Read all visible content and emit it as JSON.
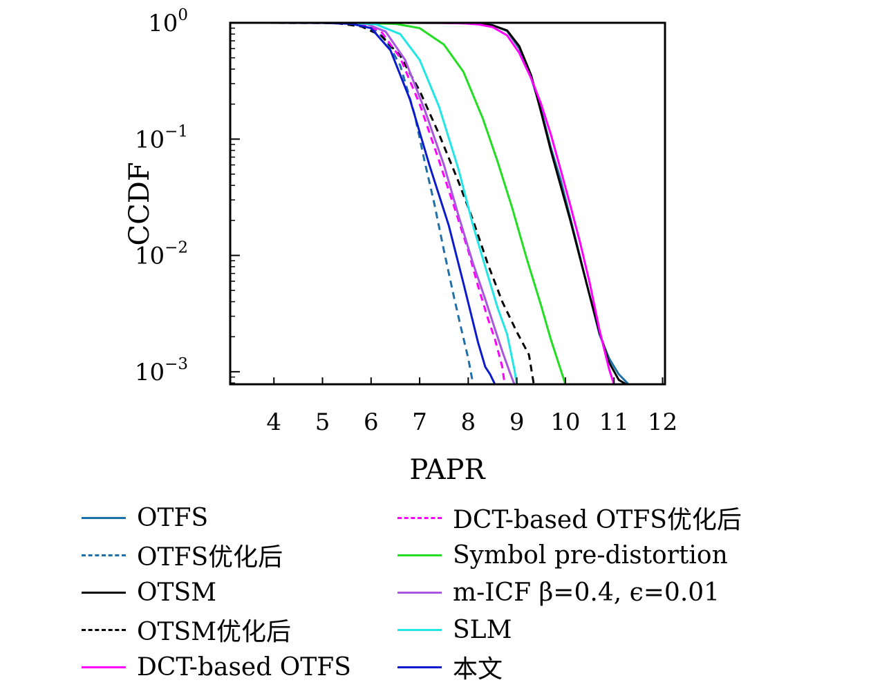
{
  "chart_data": {
    "type": "line",
    "title": "",
    "xlabel": "PAPR",
    "ylabel": "CCDF",
    "xscale": "linear",
    "yscale": "log",
    "xlim": [
      3.1,
      12.05
    ],
    "ylim": [
      0.00078,
      1
    ],
    "xticks": [
      4,
      5,
      6,
      7,
      8,
      9,
      10,
      11,
      12
    ],
    "xtick_labels": [
      "4",
      "5",
      "6",
      "7",
      "8",
      "9",
      "10",
      "11",
      "12"
    ],
    "yticks": [
      1,
      0.1,
      0.01,
      0.001
    ],
    "ytick_labels": [
      {
        "base": "10",
        "exp": "0"
      },
      {
        "base": "10",
        "exp": "−1"
      },
      {
        "base": "10",
        "exp": "−2"
      },
      {
        "base": "10",
        "exp": "−3"
      }
    ],
    "legend_position": "below",
    "series": [
      {
        "name": "OTFS",
        "color": "#1f6fa8",
        "dash": "solid",
        "x": [
          3.1,
          6.5,
          7.5,
          7.9,
          8.2,
          8.5,
          8.8,
          9.05,
          9.3,
          9.5,
          9.7,
          9.9,
          10.1,
          10.3,
          10.5,
          10.7,
          10.9,
          11.1,
          11.3
        ],
        "y": [
          1.0,
          1.0,
          0.999,
          0.995,
          0.985,
          0.955,
          0.85,
          0.6,
          0.33,
          0.18,
          0.085,
          0.045,
          0.021,
          0.0098,
          0.0045,
          0.0021,
          0.0013,
          0.00095,
          0.00078
        ]
      },
      {
        "name": "OTFS优化后",
        "color": "#1f6fa8",
        "dash": "dashed",
        "x": [
          3.1,
          4.8,
          5.5,
          6.0,
          6.3,
          6.6,
          6.9,
          7.1,
          7.3,
          7.5,
          7.7,
          7.85,
          8.0,
          8.1
        ],
        "y": [
          1.0,
          0.999,
          0.99,
          0.92,
          0.72,
          0.43,
          0.16,
          0.065,
          0.028,
          0.011,
          0.0045,
          0.0024,
          0.0013,
          0.00078
        ]
      },
      {
        "name": "OTSM",
        "color": "#000000",
        "dash": "solid",
        "x": [
          3.1,
          6.5,
          7.5,
          7.95,
          8.2,
          8.5,
          8.8,
          9.05,
          9.3,
          9.5,
          9.7,
          9.9,
          10.1,
          10.3,
          10.5,
          10.7,
          10.9,
          11.1,
          11.25
        ],
        "y": [
          1.0,
          1.0,
          0.999,
          0.99,
          0.98,
          0.95,
          0.86,
          0.63,
          0.35,
          0.17,
          0.08,
          0.04,
          0.02,
          0.0095,
          0.0045,
          0.0022,
          0.0012,
          0.00085,
          0.00078
        ]
      },
      {
        "name": "OTSM优化后",
        "color": "#000000",
        "dash": "dashed",
        "x": [
          3.1,
          4.8,
          5.3,
          5.8,
          6.2,
          6.6,
          7.0,
          7.4,
          7.8,
          8.1,
          8.4,
          8.7,
          9.0,
          9.25,
          9.35
        ],
        "y": [
          1.0,
          0.999,
          0.99,
          0.93,
          0.78,
          0.52,
          0.26,
          0.11,
          0.043,
          0.02,
          0.0085,
          0.004,
          0.0022,
          0.0014,
          0.00078
        ]
      },
      {
        "name": "DCT-based OTFS",
        "color": "#ff00ff",
        "dash": "solid",
        "x": [
          3.1,
          6.5,
          7.4,
          7.9,
          8.2,
          8.5,
          8.8,
          9.05,
          9.3,
          9.5,
          9.7,
          9.9,
          10.1,
          10.3,
          10.5,
          10.7,
          10.9,
          11.0
        ],
        "y": [
          1.0,
          1.0,
          0.999,
          0.99,
          0.97,
          0.92,
          0.78,
          0.55,
          0.33,
          0.2,
          0.11,
          0.055,
          0.027,
          0.013,
          0.0058,
          0.0023,
          0.00105,
          0.00078
        ]
      },
      {
        "name": "DCT-based OTFS优化后",
        "color": "#ff00ff",
        "dash": "dashed",
        "x": [
          3.1,
          5.3,
          5.8,
          6.2,
          6.6,
          7.0,
          7.4,
          7.7,
          8.0,
          8.2,
          8.4,
          8.55,
          8.7,
          8.75
        ],
        "y": [
          1.0,
          0.999,
          0.98,
          0.85,
          0.5,
          0.2,
          0.065,
          0.027,
          0.011,
          0.0055,
          0.0029,
          0.0019,
          0.0011,
          0.00078
        ]
      },
      {
        "name": "Symbol pre-distortion",
        "color": "#22dd22",
        "dash": "solid",
        "x": [
          3.1,
          5.5,
          6.5,
          7.0,
          7.5,
          7.9,
          8.3,
          8.6,
          8.9,
          9.2,
          9.5,
          9.7,
          9.9,
          10.0
        ],
        "y": [
          1.0,
          1.0,
          0.98,
          0.9,
          0.65,
          0.38,
          0.15,
          0.065,
          0.026,
          0.0095,
          0.0037,
          0.0019,
          0.00105,
          0.00078
        ]
      },
      {
        "name": "m-ICF β=0.4, ϵ=0.01",
        "color": "#aa55e0",
        "dash": "solid",
        "x": [
          3.1,
          5.4,
          5.9,
          6.3,
          6.7,
          7.1,
          7.5,
          7.8,
          8.1,
          8.35,
          8.5,
          8.7,
          8.85,
          8.95
        ],
        "y": [
          1.0,
          0.999,
          0.98,
          0.84,
          0.48,
          0.18,
          0.06,
          0.022,
          0.0085,
          0.0042,
          0.0027,
          0.0015,
          0.001,
          0.00078
        ]
      },
      {
        "name": "SLM",
        "color": "#22e5e5",
        "dash": "solid",
        "x": [
          3.1,
          5.5,
          6.1,
          6.6,
          7.0,
          7.4,
          7.8,
          8.1,
          8.4,
          8.6,
          8.8,
          8.95,
          9.0
        ],
        "y": [
          1.0,
          0.999,
          0.97,
          0.8,
          0.48,
          0.19,
          0.055,
          0.018,
          0.0068,
          0.0036,
          0.0021,
          0.00105,
          0.00078
        ]
      },
      {
        "name": "本文",
        "color": "#0b1bcc",
        "dash": "solid",
        "x": [
          3.1,
          5.0,
          5.6,
          6.0,
          6.4,
          6.8,
          7.2,
          7.6,
          7.9,
          8.2,
          8.35,
          8.45,
          8.55
        ],
        "y": [
          1.0,
          0.999,
          0.98,
          0.9,
          0.58,
          0.22,
          0.06,
          0.018,
          0.0058,
          0.0018,
          0.0011,
          0.00095,
          0.00078
        ]
      }
    ]
  }
}
